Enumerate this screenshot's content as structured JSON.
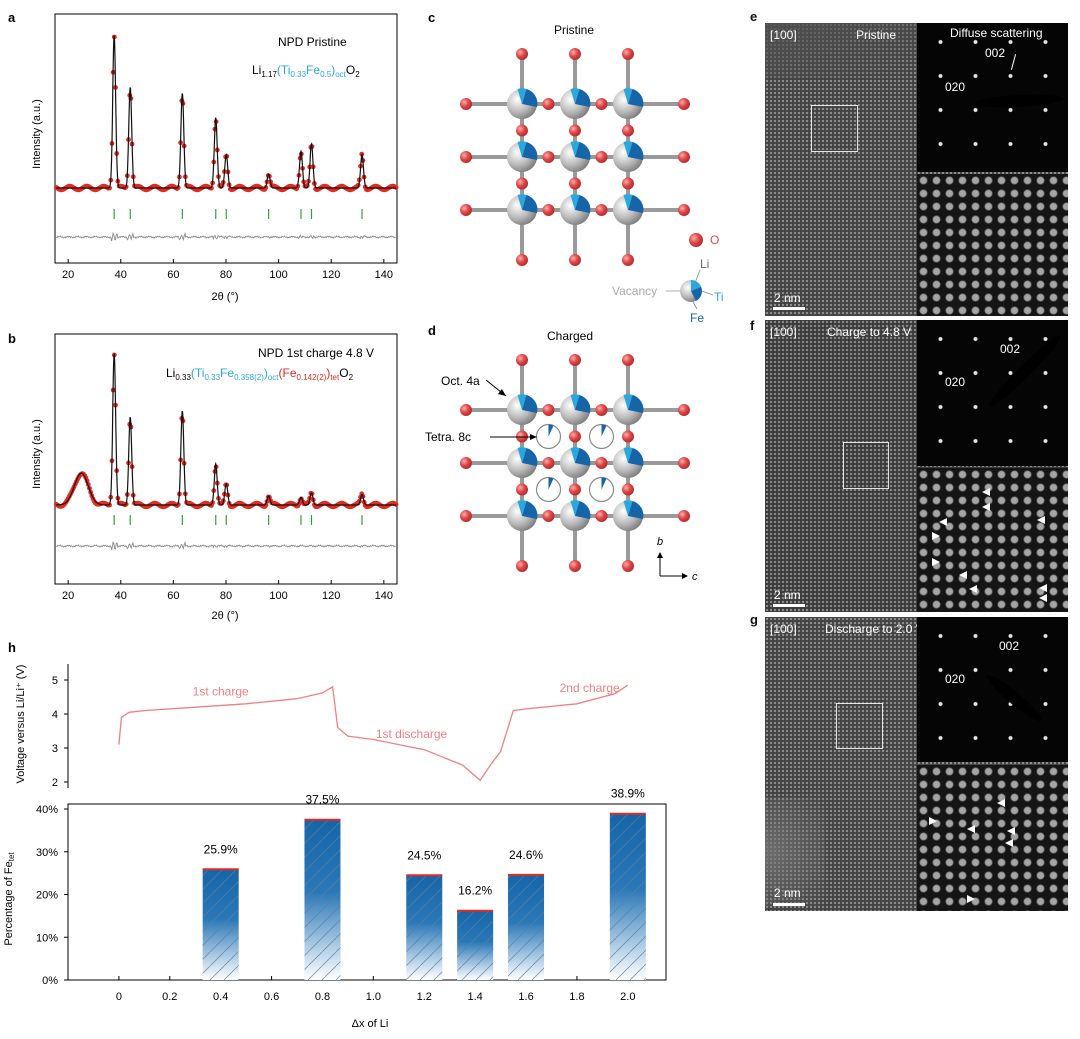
{
  "panels": {
    "a": {
      "letter": "a",
      "title": "NPD  Pristine",
      "f1": "Li",
      "f2": "1.17",
      "f3": "(Ti",
      "f4": "0.33",
      "f5": "Fe",
      "f6": "0.5",
      "f7": ")",
      "f8": "oct",
      "f9": "O",
      "f10": "2"
    },
    "b": {
      "letter": "b",
      "title": "NPD  1st charge 4.8 V",
      "f1": "Li",
      "f2": "0.33",
      "f3": "(Ti",
      "f4": "0.33",
      "f5": "Fe",
      "f6": "0.358(2)",
      "f7": ")",
      "f8": "oct",
      "f9": "(Fe",
      "f10": "0.142(2)",
      "f11": ")",
      "f12": "tet",
      "f13": "O",
      "f14": "2"
    },
    "c": {
      "letter": "c",
      "title": "Pristine",
      "o_label": "O",
      "li_label": "Li",
      "vacancy_label": "Vacancy",
      "ti_label": "Ti",
      "fe_label": "Fe"
    },
    "d": {
      "letter": "d",
      "title": "Charged",
      "oct_label": "Oct. 4a",
      "tet_label": "Tetra. 8c",
      "axis_b": "b",
      "axis_c": "c"
    },
    "e": {
      "letter": "e",
      "zone": "[100]",
      "title": "Pristine",
      "extra": "Diffuse scattering",
      "spot1": "002",
      "spot2": "020",
      "scale": "2 nm"
    },
    "f": {
      "letter": "f",
      "zone": "[100]",
      "title": "Charge to 4.8 V",
      "spot1": "002",
      "spot2": "020",
      "scale": "2 nm"
    },
    "g": {
      "letter": "g",
      "zone": "[100]",
      "title": "Discharge to 2.0 V",
      "spot1": "002",
      "spot2": "020",
      "scale": "2 nm"
    },
    "h": {
      "letter": "h",
      "ylabel_top": "Voltage versus Li/Li⁺ (V)",
      "ylabel_bottom": "Percentage of Fe",
      "ylabel_bottom_sub": "tet",
      "xlabel": "Δx of Li",
      "curve_labels": [
        "1st charge",
        "1st discharge",
        "2nd charge"
      ]
    }
  },
  "colors": {
    "observed": "#e32a22",
    "calculated": "#111111",
    "bragg": "#2ea043",
    "difference": "#8a8a8a",
    "bar": "#1565a8",
    "curve": "#f08080",
    "ti": "#29a8e0",
    "fe_tet": "#e32a22",
    "oxygen": "#d94040"
  },
  "chart_data": [
    {
      "id": "a",
      "type": "line",
      "xlabel": "2θ (°)",
      "ylabel": "Intensity (a.u.)",
      "xlim": [
        15,
        145
      ],
      "xticks": [
        20,
        40,
        60,
        80,
        100,
        120,
        140
      ],
      "peaks": [
        [
          37.5,
          1.0
        ],
        [
          43.6,
          0.66
        ],
        [
          63.4,
          0.62
        ],
        [
          76.1,
          0.46
        ],
        [
          80.1,
          0.22
        ],
        [
          96.2,
          0.09
        ],
        [
          108.5,
          0.24
        ],
        [
          112.5,
          0.29
        ],
        [
          131.7,
          0.22
        ]
      ],
      "bragg_positions": [
        37.5,
        43.6,
        63.4,
        76.1,
        80.1,
        96.2,
        108.5,
        112.5,
        131.7
      ]
    },
    {
      "id": "b",
      "type": "line",
      "xlabel": "2θ (°)",
      "ylabel": "Intensity (a.u.)",
      "xlim": [
        15,
        145
      ],
      "xticks": [
        20,
        40,
        60,
        80,
        100,
        120,
        140
      ],
      "peaks": [
        [
          25,
          0.21
        ],
        [
          37.5,
          1.0
        ],
        [
          43.6,
          0.58
        ],
        [
          63.4,
          0.62
        ],
        [
          76.1,
          0.27
        ],
        [
          80.1,
          0.14
        ],
        [
          96.2,
          0.06
        ],
        [
          108.5,
          0.05
        ],
        [
          112.5,
          0.08
        ],
        [
          131.7,
          0.07
        ]
      ],
      "bragg_positions": [
        37.5,
        43.6,
        63.4,
        76.1,
        80.1,
        96.2,
        108.5,
        112.5,
        131.7
      ]
    },
    {
      "id": "h-voltage",
      "type": "line",
      "ylim": [
        2,
        5
      ],
      "yticks": [
        2,
        3,
        4,
        5
      ],
      "xlim": [
        -0.2,
        2.15
      ],
      "x": [
        0,
        0.01,
        0.04,
        0.1,
        0.3,
        0.5,
        0.7,
        0.8,
        0.84,
        0.86,
        0.9,
        1.0,
        1.2,
        1.35,
        1.42,
        1.46,
        1.5,
        1.55,
        1.6,
        1.8,
        1.95,
        2.0
      ],
      "y": [
        3.1,
        3.9,
        4.05,
        4.1,
        4.2,
        4.3,
        4.45,
        4.62,
        4.8,
        3.6,
        3.35,
        3.25,
        2.95,
        2.5,
        2.05,
        2.5,
        2.9,
        4.1,
        4.15,
        4.3,
        4.6,
        4.85
      ]
    },
    {
      "id": "h-bars",
      "type": "bar",
      "ylim": [
        0,
        40
      ],
      "yticks": [
        0,
        10,
        20,
        30,
        40
      ],
      "ytick_suffix": "%",
      "xticks": [
        0,
        0.2,
        0.4,
        0.6,
        0.8,
        1.0,
        1.2,
        1.4,
        1.6,
        1.8,
        2.0
      ],
      "xlim": [
        -0.2,
        2.15
      ],
      "x": [
        0.4,
        0.8,
        1.2,
        1.4,
        1.6,
        2.0
      ],
      "values": [
        25.9,
        37.5,
        24.5,
        16.2,
        24.6,
        38.9
      ],
      "labels": [
        "25.9%",
        "37.5%",
        "24.5%",
        "16.2%",
        "24.6%",
        "38.9%"
      ]
    }
  ]
}
